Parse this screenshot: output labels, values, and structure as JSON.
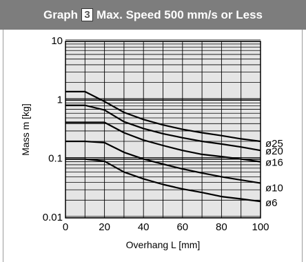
{
  "header": {
    "prefix": "Graph",
    "number": "3",
    "suffix": "Max. Speed 500 mm/s or Less"
  },
  "chart_data": {
    "type": "line",
    "title": "Graph 3 Max. Speed 500 mm/s or Less",
    "xlabel": "Overhang L [mm]",
    "ylabel": "Mass m [kg]",
    "xlim": [
      0,
      100
    ],
    "ylim": [
      0.01,
      10
    ],
    "y_scale": "log",
    "grid": true,
    "x_ticks": [
      0,
      20,
      40,
      60,
      80,
      100
    ],
    "y_ticks": [
      {
        "value": 0.01,
        "label": "0.01"
      },
      {
        "value": 0.1,
        "label": "0.1"
      },
      {
        "value": 1,
        "label": "1"
      },
      {
        "value": 10,
        "label": "10"
      }
    ],
    "series": [
      {
        "name": "ø25",
        "x": [
          0,
          10,
          20,
          30,
          40,
          50,
          60,
          70,
          80,
          90,
          100
        ],
        "y": [
          1.4,
          1.4,
          0.95,
          0.62,
          0.47,
          0.38,
          0.32,
          0.28,
          0.25,
          0.22,
          0.2
        ]
      },
      {
        "name": "ø20",
        "x": [
          0,
          10,
          20,
          30,
          40,
          50,
          60,
          70,
          80,
          90,
          100
        ],
        "y": [
          0.82,
          0.82,
          0.68,
          0.43,
          0.33,
          0.27,
          0.23,
          0.2,
          0.18,
          0.16,
          0.14
        ]
      },
      {
        "name": "ø16",
        "x": [
          0,
          10,
          20,
          30,
          40,
          50,
          60,
          70,
          80,
          90,
          100
        ],
        "y": [
          0.42,
          0.42,
          0.42,
          0.28,
          0.21,
          0.17,
          0.14,
          0.12,
          0.11,
          0.1,
          0.09
        ]
      },
      {
        "name": "ø10",
        "x": [
          0,
          10,
          20,
          30,
          40,
          50,
          60,
          70,
          80,
          90,
          100
        ],
        "y": [
          0.2,
          0.2,
          0.19,
          0.13,
          0.1,
          0.082,
          0.068,
          0.058,
          0.05,
          0.044,
          0.039
        ]
      },
      {
        "name": "ø6",
        "x": [
          0,
          10,
          20,
          30,
          40,
          50,
          60,
          70,
          80,
          90,
          100
        ],
        "y": [
          0.1,
          0.1,
          0.092,
          0.06,
          0.046,
          0.037,
          0.031,
          0.027,
          0.023,
          0.021,
          0.019
        ]
      }
    ],
    "colors": {
      "background": "#e5e5e5",
      "lines": "#000000",
      "grid": "#000000",
      "header": "#7d7d7d"
    }
  }
}
